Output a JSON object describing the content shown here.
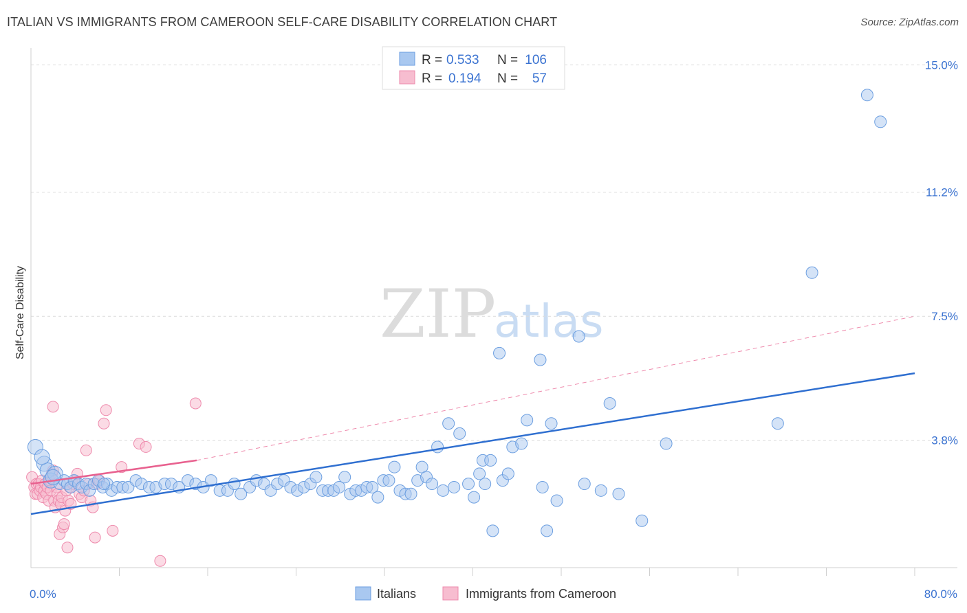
{
  "header": {
    "title": "ITALIAN VS IMMIGRANTS FROM CAMEROON SELF-CARE DISABILITY CORRELATION CHART",
    "source": "Source: ZipAtlas.com"
  },
  "watermark": {
    "part1": "ZIP",
    "part2": "atlas"
  },
  "legend_top": {
    "rows": [
      {
        "r_label": "R =",
        "r_value": "0.533",
        "n_label": "N =",
        "n_value": "106"
      },
      {
        "r_label": "R =",
        "r_value": "0.194",
        "n_label": "N =",
        "n_value": "57"
      }
    ]
  },
  "legend_bottom": {
    "items": [
      "Italians",
      "Immigrants from Cameroon"
    ]
  },
  "colors": {
    "blue_fill": "#a9c8f0",
    "blue_stroke": "#6b9ee0",
    "blue_line": "#2f6fd0",
    "pink_fill": "#f7bdd0",
    "pink_stroke": "#ee8aac",
    "pink_line": "#e8618f",
    "grid": "#dcdcdc",
    "tick_text": "#3b73d1"
  },
  "chart_data": {
    "type": "scatter",
    "title": "ITALIAN VS IMMIGRANTS FROM CAMEROON SELF-CARE DISABILITY CORRELATION CHART",
    "xlabel": "",
    "ylabel": "Self-Care Disability",
    "xlim": [
      0,
      80
    ],
    "ylim": [
      0,
      15.5
    ],
    "x_tick_labels": [
      "0.0%",
      "80.0%"
    ],
    "y_ticks": [
      3.8,
      7.5,
      11.2,
      15.0
    ],
    "y_tick_labels": [
      "3.8%",
      "7.5%",
      "11.2%",
      "15.0%"
    ],
    "grid": true,
    "legend_position": "top-center",
    "series": [
      {
        "name": "Italians",
        "r": 0.533,
        "n": 106,
        "trend": [
          [
            0,
            1.6
          ],
          [
            80,
            5.8
          ]
        ],
        "points": [
          [
            0.4,
            3.6
          ],
          [
            1.2,
            3.1
          ],
          [
            1.5,
            2.9
          ],
          [
            1.8,
            2.6
          ],
          [
            2.2,
            2.8
          ],
          [
            2.6,
            2.5
          ],
          [
            3.0,
            2.6
          ],
          [
            3.3,
            2.5
          ],
          [
            3.6,
            2.4
          ],
          [
            3.9,
            2.6
          ],
          [
            4.3,
            2.5
          ],
          [
            4.6,
            2.4
          ],
          [
            5.0,
            2.5
          ],
          [
            5.3,
            2.3
          ],
          [
            5.7,
            2.5
          ],
          [
            6.1,
            2.6
          ],
          [
            6.5,
            2.4
          ],
          [
            6.9,
            2.5
          ],
          [
            7.3,
            2.3
          ],
          [
            7.8,
            2.4
          ],
          [
            8.3,
            2.4
          ],
          [
            8.8,
            2.4
          ],
          [
            9.5,
            2.6
          ],
          [
            10.0,
            2.5
          ],
          [
            10.7,
            2.4
          ],
          [
            11.3,
            2.4
          ],
          [
            12.1,
            2.5
          ],
          [
            12.7,
            2.5
          ],
          [
            13.4,
            2.4
          ],
          [
            14.2,
            2.6
          ],
          [
            14.9,
            2.5
          ],
          [
            15.6,
            2.4
          ],
          [
            16.3,
            2.6
          ],
          [
            17.1,
            2.3
          ],
          [
            17.8,
            2.3
          ],
          [
            18.4,
            2.5
          ],
          [
            19.0,
            2.2
          ],
          [
            19.8,
            2.4
          ],
          [
            20.4,
            2.6
          ],
          [
            21.1,
            2.5
          ],
          [
            21.7,
            2.3
          ],
          [
            22.3,
            2.5
          ],
          [
            22.9,
            2.6
          ],
          [
            23.5,
            2.4
          ],
          [
            24.1,
            2.3
          ],
          [
            24.7,
            2.4
          ],
          [
            25.3,
            2.5
          ],
          [
            25.8,
            2.7
          ],
          [
            26.4,
            2.3
          ],
          [
            26.9,
            2.3
          ],
          [
            27.4,
            2.3
          ],
          [
            27.9,
            2.4
          ],
          [
            28.4,
            2.7
          ],
          [
            28.9,
            2.2
          ],
          [
            29.4,
            2.3
          ],
          [
            29.9,
            2.3
          ],
          [
            30.4,
            2.4
          ],
          [
            30.9,
            2.4
          ],
          [
            31.4,
            2.1
          ],
          [
            31.9,
            2.6
          ],
          [
            32.4,
            2.6
          ],
          [
            32.9,
            3.0
          ],
          [
            33.4,
            2.3
          ],
          [
            33.9,
            2.2
          ],
          [
            34.4,
            2.2
          ],
          [
            35.0,
            2.6
          ],
          [
            35.4,
            3.0
          ],
          [
            35.8,
            2.7
          ],
          [
            36.3,
            2.5
          ],
          [
            36.8,
            3.6
          ],
          [
            37.3,
            2.3
          ],
          [
            37.8,
            4.3
          ],
          [
            38.3,
            2.4
          ],
          [
            38.8,
            4.0
          ],
          [
            39.6,
            2.5
          ],
          [
            40.1,
            2.1
          ],
          [
            40.6,
            2.8
          ],
          [
            40.9,
            3.2
          ],
          [
            41.1,
            2.5
          ],
          [
            41.6,
            3.2
          ],
          [
            41.8,
            1.1
          ],
          [
            42.4,
            6.4
          ],
          [
            42.7,
            2.6
          ],
          [
            43.2,
            2.8
          ],
          [
            43.6,
            3.6
          ],
          [
            44.4,
            3.7
          ],
          [
            44.9,
            4.4
          ],
          [
            46.1,
            6.2
          ],
          [
            46.3,
            2.4
          ],
          [
            46.7,
            1.1
          ],
          [
            47.1,
            4.3
          ],
          [
            47.6,
            2.0
          ],
          [
            49.6,
            6.9
          ],
          [
            50.1,
            2.5
          ],
          [
            51.6,
            2.3
          ],
          [
            52.4,
            4.9
          ],
          [
            53.2,
            2.2
          ],
          [
            55.3,
            1.4
          ],
          [
            57.5,
            3.7
          ],
          [
            67.6,
            4.3
          ],
          [
            70.7,
            8.8
          ],
          [
            75.7,
            14.1
          ],
          [
            76.9,
            13.3
          ],
          [
            1.0,
            3.3
          ],
          [
            2.0,
            2.7
          ],
          [
            6.6,
            2.5
          ]
        ]
      },
      {
        "name": "Immigrants from Cameroon",
        "r": 0.194,
        "n": 57,
        "trend": [
          [
            0,
            2.5
          ],
          [
            15,
            3.2
          ]
        ],
        "trend_extended": [
          [
            15,
            3.2
          ],
          [
            80,
            7.5
          ]
        ],
        "points": [
          [
            0.1,
            2.7
          ],
          [
            0.3,
            2.4
          ],
          [
            0.4,
            2.2
          ],
          [
            0.5,
            2.5
          ],
          [
            0.6,
            2.2
          ],
          [
            0.7,
            2.5
          ],
          [
            0.8,
            2.3
          ],
          [
            0.9,
            2.4
          ],
          [
            1.0,
            2.6
          ],
          [
            1.1,
            2.1
          ],
          [
            1.2,
            2.3
          ],
          [
            1.3,
            2.5
          ],
          [
            1.4,
            2.2
          ],
          [
            1.5,
            2.4
          ],
          [
            1.6,
            2.0
          ],
          [
            1.7,
            2.6
          ],
          [
            1.8,
            2.3
          ],
          [
            1.9,
            2.8
          ],
          [
            2.0,
            2.9
          ],
          [
            2.1,
            2.0
          ],
          [
            2.2,
            1.8
          ],
          [
            2.3,
            2.4
          ],
          [
            2.4,
            2.2
          ],
          [
            2.5,
            2.0
          ],
          [
            2.6,
            1.0
          ],
          [
            2.7,
            1.9
          ],
          [
            2.8,
            2.1
          ],
          [
            2.9,
            1.2
          ],
          [
            3.0,
            1.3
          ],
          [
            3.1,
            1.7
          ],
          [
            3.2,
            2.3
          ],
          [
            3.3,
            0.6
          ],
          [
            3.4,
            2.0
          ],
          [
            3.5,
            2.4
          ],
          [
            3.6,
            1.9
          ],
          [
            3.8,
            2.5
          ],
          [
            4.0,
            2.6
          ],
          [
            4.2,
            2.8
          ],
          [
            4.4,
            2.2
          ],
          [
            4.6,
            2.1
          ],
          [
            4.8,
            2.3
          ],
          [
            5.0,
            3.5
          ],
          [
            5.2,
            2.5
          ],
          [
            5.4,
            2.0
          ],
          [
            5.6,
            1.8
          ],
          [
            5.8,
            0.9
          ],
          [
            6.0,
            2.5
          ],
          [
            6.2,
            2.6
          ],
          [
            6.6,
            4.3
          ],
          [
            6.8,
            4.7
          ],
          [
            7.4,
            1.1
          ],
          [
            8.2,
            3.0
          ],
          [
            9.8,
            3.7
          ],
          [
            10.4,
            3.6
          ],
          [
            11.7,
            0.2
          ],
          [
            14.9,
            4.9
          ],
          [
            2.0,
            4.8
          ]
        ]
      }
    ]
  }
}
